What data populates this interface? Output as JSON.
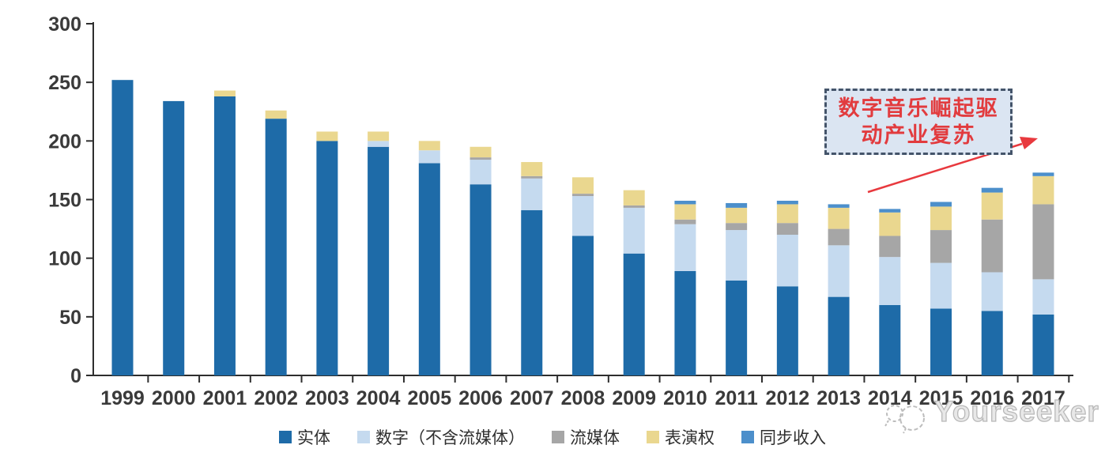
{
  "chart_data": {
    "type": "bar",
    "stacked": true,
    "title": "",
    "xlabel": "",
    "ylabel": "",
    "ylim": [
      0,
      300
    ],
    "yticks": [
      0,
      50,
      100,
      150,
      200,
      250,
      300
    ],
    "grid": false,
    "legend_position": "bottom",
    "categories": [
      "1999",
      "2000",
      "2001",
      "2002",
      "2003",
      "2004",
      "2005",
      "2006",
      "2007",
      "2008",
      "2009",
      "2010",
      "2011",
      "2012",
      "2013",
      "2014",
      "2015",
      "2016",
      "2017"
    ],
    "series": [
      {
        "name": "实体",
        "color": "#1E6BA8",
        "values": [
          252,
          234,
          238,
          219,
          200,
          195,
          181,
          163,
          141,
          119,
          104,
          89,
          81,
          76,
          67,
          60,
          57,
          55,
          52
        ]
      },
      {
        "name": "数字（不含流媒体）",
        "color": "#C5DAEF",
        "values": [
          0,
          0,
          0,
          0,
          0,
          5,
          11,
          21,
          27,
          34,
          39,
          40,
          43,
          44,
          44,
          41,
          39,
          33,
          30
        ]
      },
      {
        "name": "流媒体",
        "color": "#A6A6A6",
        "values": [
          0,
          0,
          0,
          0,
          0,
          0,
          0,
          2,
          2,
          2,
          2,
          4,
          6,
          10,
          14,
          18,
          28,
          45,
          64
        ]
      },
      {
        "name": "表演权",
        "color": "#EAD78F",
        "values": [
          0,
          0,
          5,
          7,
          8,
          8,
          8,
          9,
          12,
          14,
          13,
          13,
          13,
          16,
          18,
          20,
          20,
          23,
          24
        ]
      },
      {
        "name": "同步收入",
        "color": "#4C8FCB",
        "values": [
          0,
          0,
          0,
          0,
          0,
          0,
          0,
          0,
          0,
          0,
          0,
          3,
          4,
          3,
          3,
          3,
          4,
          4,
          3
        ]
      }
    ],
    "totals": [
      252,
      234,
      243,
      226,
      208,
      208,
      200,
      195,
      182,
      169,
      158,
      149,
      147,
      149,
      146,
      142,
      148,
      160,
      173
    ]
  },
  "axis": {
    "color": "#2E2E2E",
    "label_color": "#3A3A3A"
  },
  "annotation": {
    "line1": "数字音乐崛起驱",
    "line2": "动产业复苏",
    "text_color": "#E23B3E",
    "box_fill": "#DBE5F2",
    "box_border": "#44546A",
    "arrow_color": "#E8393E"
  },
  "watermark": {
    "text": "Yourseeker",
    "color": "#BDBDBD"
  }
}
